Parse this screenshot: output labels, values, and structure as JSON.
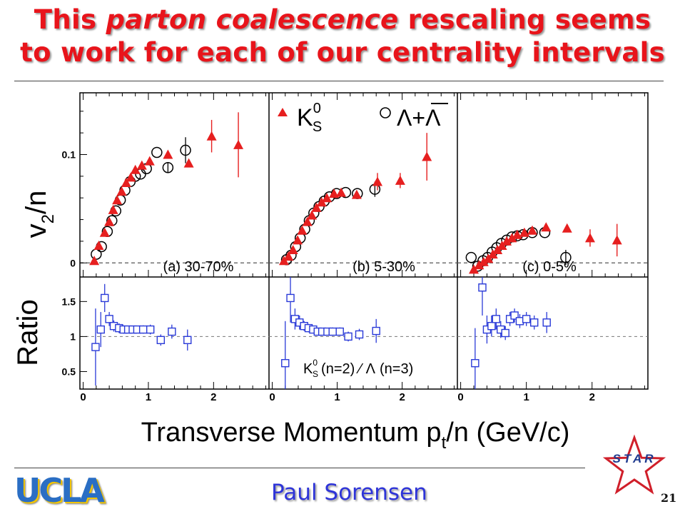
{
  "slide": {
    "title_part1": "This ",
    "title_emph": "parton coalescence",
    "title_part2": " rescaling seems",
    "title_line2": "to work for each of our centrality intervals",
    "footer_logo": "UCLA",
    "author": "Paul Sorensen",
    "page_number": "21",
    "star_logo_text": "STAR",
    "colors": {
      "title": "#e8141b",
      "author": "#2e34d8",
      "ucla_blue": "#2a6ec4",
      "ucla_gold": "#f2c400",
      "star_red": "#d01f2a",
      "star_blue": "#1f3a8f"
    }
  },
  "chart_data": {
    "type": "scatter",
    "x_axis_label": "Transverse Momentum p",
    "x_axis_sub": "t",
    "x_axis_suffix": "/n (GeV/c)",
    "top_ylabel_main": "v",
    "top_ylabel_sub": "2",
    "top_ylabel_suffix": "/n",
    "bottom_ylabel": "Ratio",
    "xlim": [
      -0.05,
      2.85
    ],
    "top_ylim": [
      -0.013,
      0.157
    ],
    "bottom_ylim": [
      0.25,
      1.85
    ],
    "x_ticks": [
      "0",
      "1",
      "2"
    ],
    "top_ticks": [
      "0.1",
      "0"
    ],
    "bottom_ticks": [
      "1.5",
      "1",
      "0.5"
    ],
    "legend": {
      "k_main": "K",
      "k_sup": "0",
      "k_sub": "S",
      "lambda": "Λ+Λ"
    },
    "ratio_legend": {
      "k_main": "K",
      "k_sup": "0",
      "k_sub": "S",
      "mid": "(n=2)",
      "slash": "⁄",
      "lam": "Λ",
      "end": "(n=3)"
    },
    "colors": {
      "k0s": "#e61f1f",
      "lambda": "#000000",
      "ratio": "#2a3ad8"
    },
    "panels": [
      {
        "label": "(a) 30-70%",
        "k0s": [
          [
            0.17,
            0.002,
            0
          ],
          [
            0.24,
            0.016,
            0
          ],
          [
            0.33,
            0.028,
            0
          ],
          [
            0.4,
            0.038,
            0
          ],
          [
            0.46,
            0.049,
            0
          ],
          [
            0.52,
            0.058,
            0
          ],
          [
            0.59,
            0.066,
            0
          ],
          [
            0.66,
            0.074,
            0
          ],
          [
            0.73,
            0.079,
            0
          ],
          [
            0.8,
            0.086,
            0
          ],
          [
            0.9,
            0.09,
            0
          ],
          [
            1.02,
            0.094,
            0
          ],
          [
            1.3,
            0.1,
            0
          ],
          [
            1.62,
            0.092,
            0
          ],
          [
            1.97,
            0.117,
            0.015
          ],
          [
            2.38,
            0.109,
            0.03
          ]
        ],
        "lambda": [
          [
            0.2,
            0.008,
            0
          ],
          [
            0.28,
            0.015,
            0
          ],
          [
            0.37,
            0.029,
            0
          ],
          [
            0.44,
            0.039,
            0
          ],
          [
            0.5,
            0.048,
            0
          ],
          [
            0.57,
            0.058,
            0
          ],
          [
            0.64,
            0.067,
            0
          ],
          [
            0.72,
            0.075,
            0
          ],
          [
            0.8,
            0.08,
            0
          ],
          [
            0.88,
            0.082,
            0
          ],
          [
            0.97,
            0.087,
            0
          ],
          [
            1.13,
            0.102,
            0
          ],
          [
            1.3,
            0.088,
            0.005
          ],
          [
            1.57,
            0.104,
            0.012
          ]
        ],
        "ratio": [
          [
            0.19,
            0.85,
            0.55
          ],
          [
            0.27,
            1.1,
            0.25
          ],
          [
            0.33,
            1.55,
            0.2
          ],
          [
            0.4,
            1.25,
            0.1
          ],
          [
            0.47,
            1.15,
            0.08
          ],
          [
            0.55,
            1.12,
            0.07
          ],
          [
            0.62,
            1.1,
            0.06
          ],
          [
            0.69,
            1.1,
            0.05
          ],
          [
            0.76,
            1.1,
            0.05
          ],
          [
            0.83,
            1.1,
            0.05
          ],
          [
            0.92,
            1.1,
            0.06
          ],
          [
            1.03,
            1.1,
            0.07
          ],
          [
            1.19,
            0.95,
            0.08
          ],
          [
            1.36,
            1.07,
            0.1
          ],
          [
            1.6,
            0.95,
            0.15
          ]
        ]
      },
      {
        "label": "(b) 5-30%",
        "k0s": [
          [
            0.18,
            0.002,
            0
          ],
          [
            0.25,
            0.006,
            0
          ],
          [
            0.32,
            0.012,
            0
          ],
          [
            0.39,
            0.021,
            0
          ],
          [
            0.46,
            0.03,
            0
          ],
          [
            0.54,
            0.038,
            0
          ],
          [
            0.61,
            0.044,
            0
          ],
          [
            0.68,
            0.051,
            0
          ],
          [
            0.76,
            0.056,
            0
          ],
          [
            0.84,
            0.06,
            0
          ],
          [
            0.95,
            0.064,
            0
          ],
          [
            1.06,
            0.065,
            0
          ],
          [
            1.3,
            0.063,
            0
          ],
          [
            1.62,
            0.075,
            0.008
          ],
          [
            1.97,
            0.076,
            0.007
          ],
          [
            2.38,
            0.098,
            0.022
          ]
        ],
        "lambda": [
          [
            0.22,
            0.003,
            0
          ],
          [
            0.29,
            0.007,
            0
          ],
          [
            0.36,
            0.015,
            0
          ],
          [
            0.43,
            0.023,
            0
          ],
          [
            0.5,
            0.031,
            0
          ],
          [
            0.57,
            0.039,
            0
          ],
          [
            0.64,
            0.046,
            0
          ],
          [
            0.72,
            0.052,
            0
          ],
          [
            0.8,
            0.057,
            0
          ],
          [
            0.88,
            0.061,
            0
          ],
          [
            0.99,
            0.064,
            0
          ],
          [
            1.13,
            0.065,
            0
          ],
          [
            1.31,
            0.064,
            0
          ],
          [
            1.58,
            0.068,
            0.007
          ]
        ],
        "ratio": [
          [
            0.2,
            0.62,
            0.6
          ],
          [
            0.28,
            1.55,
            0.35
          ],
          [
            0.35,
            1.25,
            0.15
          ],
          [
            0.42,
            1.2,
            0.1
          ],
          [
            0.49,
            1.15,
            0.07
          ],
          [
            0.56,
            1.12,
            0.06
          ],
          [
            0.63,
            1.1,
            0.05
          ],
          [
            0.7,
            1.07,
            0.04
          ],
          [
            0.77,
            1.07,
            0.04
          ],
          [
            0.85,
            1.07,
            0.05
          ],
          [
            0.93,
            1.07,
            0.06
          ],
          [
            1.04,
            1.07,
            0.06
          ],
          [
            1.17,
            1.0,
            0.07
          ],
          [
            1.34,
            1.03,
            0.08
          ],
          [
            1.6,
            1.08,
            0.17
          ]
        ]
      },
      {
        "label": "(c) 0-5%",
        "k0s": [
          [
            0.2,
            -0.006,
            0
          ],
          [
            0.28,
            -0.002,
            0
          ],
          [
            0.35,
            0.001,
            0
          ],
          [
            0.42,
            0.004,
            0
          ],
          [
            0.49,
            0.008,
            0
          ],
          [
            0.56,
            0.012,
            0
          ],
          [
            0.63,
            0.016,
            0
          ],
          [
            0.7,
            0.02,
            0
          ],
          [
            0.78,
            0.023,
            0
          ],
          [
            0.86,
            0.026,
            0
          ],
          [
            0.97,
            0.028,
            0
          ],
          [
            1.09,
            0.03,
            0
          ],
          [
            1.3,
            0.033,
            0
          ],
          [
            1.62,
            0.032,
            0
          ],
          [
            1.97,
            0.023,
            0.008
          ],
          [
            2.38,
            0.021,
            0.015
          ]
        ],
        "lambda": [
          [
            0.16,
            0.005,
            0
          ],
          [
            0.26,
            -0.003,
            0
          ],
          [
            0.34,
            0.002,
            0
          ],
          [
            0.41,
            0.005,
            0
          ],
          [
            0.48,
            0.01,
            0
          ],
          [
            0.55,
            0.014,
            0
          ],
          [
            0.62,
            0.018,
            0
          ],
          [
            0.7,
            0.021,
            0
          ],
          [
            0.78,
            0.024,
            0
          ],
          [
            0.86,
            0.025,
            0
          ],
          [
            0.95,
            0.026,
            0
          ],
          [
            1.09,
            0.028,
            0
          ],
          [
            1.28,
            0.028,
            0
          ],
          [
            1.6,
            0.005,
            0.007
          ]
        ],
        "ratio": [
          [
            0.22,
            0.62,
            0.5
          ],
          [
            0.33,
            1.7,
            0.4
          ],
          [
            0.4,
            1.1,
            0.2
          ],
          [
            0.47,
            1.15,
            0.15
          ],
          [
            0.54,
            1.25,
            0.15
          ],
          [
            0.61,
            1.1,
            0.12
          ],
          [
            0.68,
            1.05,
            0.1
          ],
          [
            0.75,
            1.25,
            0.1
          ],
          [
            0.82,
            1.3,
            0.1
          ],
          [
            0.9,
            1.22,
            0.1
          ],
          [
            1.0,
            1.25,
            0.1
          ],
          [
            1.12,
            1.2,
            0.1
          ],
          [
            1.31,
            1.2,
            0.15
          ]
        ]
      }
    ]
  }
}
